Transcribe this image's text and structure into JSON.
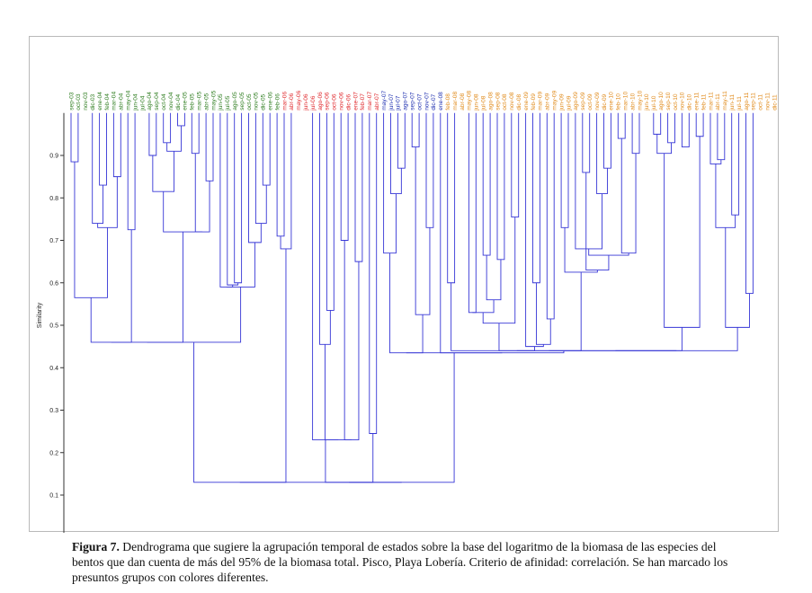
{
  "figure": {
    "caption_label": "Figura 7.",
    "caption_text": "Dendrograma que sugiere la agrupación temporal de estados sobre la base del logaritmo de la biomasa de las especies del bentos que dan cuenta de más del 95% de la biomasa total. Pisco, Playa Lobería. Criterio de afinidad: correlación. Se han marcado los presuntos grupos con colores diferentes."
  },
  "chart_data": {
    "type": "dendrogram",
    "ylabel": "Similarity",
    "ylim": [
      0,
      1
    ],
    "ticks": [
      0.1,
      0.2,
      0.3,
      0.4,
      0.5,
      0.6,
      0.7,
      0.8,
      0.9
    ],
    "tick_labels": [
      "0.1",
      "0.2",
      "0.3",
      "0.4",
      "0.5",
      "0.6",
      "0.7",
      "0.8",
      "0.9"
    ],
    "leaf_top": 1.0,
    "root_line_bottom": -0.06,
    "colors": {
      "g1": "#2e7d1f",
      "g2": "#e0262a",
      "g3": "#1e2fb0",
      "g4": "#e08a1a",
      "branch": "#3636d6"
    },
    "leaves": [
      {
        "label": "sep-03",
        "group": "g1"
      },
      {
        "label": "oct-03",
        "group": "g1"
      },
      {
        "label": "nov-03",
        "group": "g1"
      },
      {
        "label": "dic-03",
        "group": "g1"
      },
      {
        "label": "ene-04",
        "group": "g1"
      },
      {
        "label": "feb-04",
        "group": "g1"
      },
      {
        "label": "mar-04",
        "group": "g1"
      },
      {
        "label": "abr-04",
        "group": "g1"
      },
      {
        "label": "may-04",
        "group": "g1"
      },
      {
        "label": "jun-04",
        "group": "g1"
      },
      {
        "label": "jul-04",
        "group": "g1"
      },
      {
        "label": "ago-04",
        "group": "g1"
      },
      {
        "label": "sep-04",
        "group": "g1"
      },
      {
        "label": "oct-04",
        "group": "g1"
      },
      {
        "label": "nov-04",
        "group": "g1"
      },
      {
        "label": "dic-04",
        "group": "g1"
      },
      {
        "label": "ene-05",
        "group": "g1"
      },
      {
        "label": "feb-05",
        "group": "g1"
      },
      {
        "label": "mar-05",
        "group": "g1"
      },
      {
        "label": "abr-05",
        "group": "g1"
      },
      {
        "label": "may-05",
        "group": "g1"
      },
      {
        "label": "jun-05",
        "group": "g1"
      },
      {
        "label": "jul-05",
        "group": "g1"
      },
      {
        "label": "ago-05",
        "group": "g1"
      },
      {
        "label": "sep-05",
        "group": "g1"
      },
      {
        "label": "oct-05",
        "group": "g1"
      },
      {
        "label": "nov-05",
        "group": "g1"
      },
      {
        "label": "dic-05",
        "group": "g1"
      },
      {
        "label": "ene-06",
        "group": "g1"
      },
      {
        "label": "feb-06",
        "group": "g1"
      },
      {
        "label": "mar-06",
        "group": "g2"
      },
      {
        "label": "abr-06",
        "group": "g2"
      },
      {
        "label": "may-06",
        "group": "g2"
      },
      {
        "label": "jun-06",
        "group": "g2"
      },
      {
        "label": "jul-06",
        "group": "g2"
      },
      {
        "label": "ago-06",
        "group": "g2"
      },
      {
        "label": "sep-06",
        "group": "g2"
      },
      {
        "label": "oct-06",
        "group": "g2"
      },
      {
        "label": "nov-06",
        "group": "g2"
      },
      {
        "label": "dic-06",
        "group": "g2"
      },
      {
        "label": "ene-07",
        "group": "g2"
      },
      {
        "label": "feb-07",
        "group": "g2"
      },
      {
        "label": "mar-07",
        "group": "g2"
      },
      {
        "label": "abr-07",
        "group": "g2"
      },
      {
        "label": "may-07",
        "group": "g3"
      },
      {
        "label": "jun-07",
        "group": "g3"
      },
      {
        "label": "jul-07",
        "group": "g3"
      },
      {
        "label": "ago-07",
        "group": "g3"
      },
      {
        "label": "sep-07",
        "group": "g3"
      },
      {
        "label": "oct-07",
        "group": "g3"
      },
      {
        "label": "nov-07",
        "group": "g3"
      },
      {
        "label": "dic-07",
        "group": "g3"
      },
      {
        "label": "ene-08",
        "group": "g3"
      },
      {
        "label": "feb-08",
        "group": "g4"
      },
      {
        "label": "mar-08",
        "group": "g4"
      },
      {
        "label": "abr-08",
        "group": "g4"
      },
      {
        "label": "may-08",
        "group": "g4"
      },
      {
        "label": "jun-08",
        "group": "g4"
      },
      {
        "label": "jul-08",
        "group": "g4"
      },
      {
        "label": "ago-08",
        "group": "g4"
      },
      {
        "label": "sep-08",
        "group": "g4"
      },
      {
        "label": "oct-08",
        "group": "g4"
      },
      {
        "label": "nov-08",
        "group": "g4"
      },
      {
        "label": "dic-08",
        "group": "g4"
      },
      {
        "label": "ene-09",
        "group": "g4"
      },
      {
        "label": "feb-09",
        "group": "g4"
      },
      {
        "label": "mar-09",
        "group": "g4"
      },
      {
        "label": "abr-09",
        "group": "g4"
      },
      {
        "label": "may-09",
        "group": "g4"
      },
      {
        "label": "jun-09",
        "group": "g4"
      },
      {
        "label": "jul-09",
        "group": "g4"
      },
      {
        "label": "ago-09",
        "group": "g4"
      },
      {
        "label": "sep-09",
        "group": "g4"
      },
      {
        "label": "oct-09",
        "group": "g4"
      },
      {
        "label": "nov-09",
        "group": "g4"
      },
      {
        "label": "dic-09",
        "group": "g4"
      },
      {
        "label": "ene-10",
        "group": "g4"
      },
      {
        "label": "feb-10",
        "group": "g4"
      },
      {
        "label": "mar-10",
        "group": "g4"
      },
      {
        "label": "abr-10",
        "group": "g4"
      },
      {
        "label": "may-10",
        "group": "g4"
      },
      {
        "label": "jun-10",
        "group": "g4"
      },
      {
        "label": "jul-10",
        "group": "g4"
      },
      {
        "label": "ago-10",
        "group": "g4"
      },
      {
        "label": "sep-10",
        "group": "g4"
      },
      {
        "label": "oct-10",
        "group": "g4"
      },
      {
        "label": "nov-10",
        "group": "g4"
      },
      {
        "label": "dic-10",
        "group": "g4"
      },
      {
        "label": "ene-11",
        "group": "g4"
      },
      {
        "label": "feb-11",
        "group": "g4"
      },
      {
        "label": "mar-11",
        "group": "g4"
      },
      {
        "label": "abr-11",
        "group": "g4"
      },
      {
        "label": "may-11",
        "group": "g4"
      },
      {
        "label": "jun-11",
        "group": "g4"
      },
      {
        "label": "jul-11",
        "group": "g4"
      },
      {
        "label": "ago-11",
        "group": "g4"
      },
      {
        "label": "sep-11",
        "group": "g4"
      },
      {
        "label": "oct-11",
        "group": "g4"
      },
      {
        "label": "nov-11",
        "group": "g4"
      },
      {
        "label": "dic-11",
        "group": "g4"
      }
    ],
    "merges": [
      [
        0,
        1,
        0.885
      ],
      [
        4,
        5,
        0.83
      ],
      [
        3,
        "m1",
        0.74
      ],
      [
        6,
        7,
        0.85
      ],
      [
        "m2",
        "m3",
        0.73
      ],
      [
        9,
        8,
        0.725
      ],
      [
        11,
        12,
        0.9
      ],
      [
        13,
        14,
        0.93
      ],
      [
        15,
        16,
        0.97
      ],
      [
        "m7",
        "m8",
        0.91
      ],
      [
        "m6",
        "m9",
        0.815
      ],
      [
        17,
        18,
        0.905
      ],
      [
        19,
        20,
        0.84
      ],
      [
        "m11",
        "m12",
        0.72
      ],
      [
        "m10",
        "m13",
        0.72
      ],
      [
        23,
        24,
        0.6
      ],
      [
        22,
        "m15",
        0.595
      ],
      [
        21,
        "m16",
        0.59
      ],
      [
        27,
        28,
        0.83
      ],
      [
        26,
        "m18",
        0.74
      ],
      [
        25,
        "m19",
        0.695
      ],
      [
        "m17",
        "m20",
        0.59
      ],
      [
        29,
        30,
        0.71
      ],
      [
        31,
        "m22",
        0.68
      ],
      [
        "m0",
        "m4",
        0.565
      ],
      [
        "m24",
        "m5",
        0.46
      ],
      [
        "m25",
        "m14",
        0.46
      ],
      [
        "m26",
        "m21",
        0.46
      ],
      [
        36,
        37,
        0.535
      ],
      [
        35,
        "m28",
        0.455
      ],
      [
        38,
        39,
        0.7
      ],
      [
        40,
        41,
        0.65
      ],
      [
        42,
        43,
        0.245
      ],
      [
        "m30",
        "m31",
        0.23
      ],
      [
        "m29",
        "m33",
        0.23
      ],
      [
        34,
        "m34",
        0.23
      ],
      [
        46,
        47,
        0.87
      ],
      [
        45,
        "m36",
        0.81
      ],
      [
        44,
        "m37",
        0.67
      ],
      [
        48,
        49,
        0.92
      ],
      [
        50,
        51,
        0.73
      ],
      [
        "m39",
        "m40",
        0.525
      ],
      [
        "m38",
        "m41",
        0.435
      ],
      [
        53,
        54,
        0.6
      ],
      [
        56,
        57,
        0.53
      ],
      [
        58,
        59,
        0.665
      ],
      [
        60,
        61,
        0.655
      ],
      [
        "m45",
        "m46",
        0.56
      ],
      [
        "m44",
        "m47",
        0.53
      ],
      [
        62,
        63,
        0.755
      ],
      [
        "m48",
        "m49",
        0.505
      ],
      [
        65,
        66,
        0.6
      ],
      [
        67,
        68,
        0.515
      ],
      [
        "m51",
        "m52",
        0.455
      ],
      [
        64,
        "m53",
        0.45
      ],
      [
        69,
        70,
        0.73
      ],
      [
        72,
        73,
        0.86
      ],
      [
        75,
        76,
        0.87
      ],
      [
        74,
        "m57",
        0.81
      ],
      [
        71,
        "m58",
        0.68
      ],
      [
        77,
        78,
        0.94
      ],
      [
        79,
        80,
        0.905
      ],
      [
        "m60",
        "m61",
        0.67
      ],
      [
        "m59",
        "m62",
        0.665
      ],
      [
        "m56",
        "m63",
        0.63
      ],
      [
        "m55",
        "m64",
        0.625
      ],
      [
        82,
        83,
        0.95
      ],
      [
        84,
        85,
        0.93
      ],
      [
        86,
        87,
        0.92
      ],
      [
        "m66",
        "m67",
        0.905
      ],
      [
        88,
        89,
        0.945
      ],
      [
        91,
        92,
        0.89
      ],
      [
        93,
        94,
        0.76
      ],
      [
        90,
        "m71",
        0.88
      ],
      [
        "m72",
        "m73",
        0.73
      ],
      [
        95,
        96,
        0.575
      ],
      [
        "m74",
        "m75",
        0.495
      ],
      [
        "m69",
        "m70",
        0.495
      ],
      [
        "m50",
        "m54",
        0.44
      ],
      [
        "m78",
        "m65",
        0.44
      ],
      [
        "m79",
        "m77",
        0.44
      ],
      [
        "m80",
        "m76",
        0.44
      ],
      [
        "m43",
        "m81",
        0.44
      ],
      [
        52,
        "m82",
        0.435
      ],
      [
        "m42",
        "m83",
        0.435
      ],
      [
        "m32",
        "m35",
        0.13
      ],
      [
        "m85",
        "m84",
        0.13
      ],
      [
        "m27",
        "m23",
        0.13
      ],
      [
        "m87",
        "m86",
        0.13
      ]
    ]
  }
}
